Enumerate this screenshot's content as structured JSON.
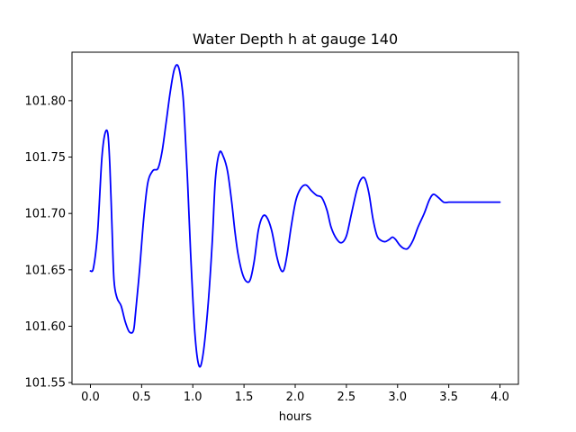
{
  "chart_data": {
    "type": "line",
    "title": "Water Depth h at gauge 140",
    "xlabel": "hours",
    "ylabel": "",
    "xlim": [
      -0.18,
      4.18
    ],
    "ylim": [
      101.5485,
      101.843
    ],
    "xticks": [
      0.0,
      0.5,
      1.0,
      1.5,
      2.0,
      2.5,
      3.0,
      3.5,
      4.0
    ],
    "xtick_labels": [
      "0.0",
      "0.5",
      "1.0",
      "1.5",
      "2.0",
      "2.5",
      "3.0",
      "3.5",
      "4.0"
    ],
    "yticks": [
      101.55,
      101.6,
      101.65,
      101.7,
      101.75,
      101.8
    ],
    "ytick_labels": [
      "101.55",
      "101.60",
      "101.65",
      "101.70",
      "101.75",
      "101.80"
    ],
    "grid": false,
    "series": [
      {
        "color": "#0000ff",
        "x": [
          0.0,
          0.03,
          0.07,
          0.11,
          0.14,
          0.17,
          0.19,
          0.21,
          0.23,
          0.26,
          0.3,
          0.34,
          0.38,
          0.42,
          0.44,
          0.48,
          0.52,
          0.56,
          0.61,
          0.66,
          0.7,
          0.74,
          0.78,
          0.82,
          0.86,
          0.9,
          0.92,
          0.95,
          0.98,
          1.02,
          1.06,
          1.1,
          1.15,
          1.19,
          1.22,
          1.26,
          1.3,
          1.34,
          1.38,
          1.41,
          1.44,
          1.48,
          1.52,
          1.56,
          1.6,
          1.64,
          1.68,
          1.72,
          1.77,
          1.82,
          1.86,
          1.89,
          1.92,
          1.96,
          2.0,
          2.03,
          2.07,
          2.11,
          2.16,
          2.21,
          2.26,
          2.31,
          2.35,
          2.4,
          2.45,
          2.5,
          2.55,
          2.6,
          2.64,
          2.68,
          2.72,
          2.76,
          2.8,
          2.84,
          2.88,
          2.92,
          2.95,
          2.98,
          3.02,
          3.06,
          3.1,
          3.15,
          3.2,
          3.26,
          3.31,
          3.35,
          3.4,
          3.45,
          3.5,
          3.55,
          3.6,
          3.66,
          3.72,
          3.78,
          3.83,
          3.88,
          3.92,
          3.97,
          4.0
        ],
        "y": [
          101.649,
          101.652,
          101.683,
          101.747,
          101.77,
          101.771,
          101.742,
          101.69,
          101.641,
          101.625,
          101.618,
          101.604,
          101.595,
          101.596,
          101.611,
          101.65,
          101.695,
          101.727,
          101.738,
          101.74,
          101.755,
          101.781,
          101.808,
          101.828,
          101.83,
          101.808,
          101.781,
          101.726,
          101.662,
          101.594,
          101.565,
          101.575,
          101.62,
          101.675,
          101.73,
          101.754,
          101.75,
          101.737,
          101.71,
          101.685,
          101.665,
          101.648,
          101.64,
          101.641,
          101.658,
          101.685,
          101.697,
          101.697,
          101.685,
          101.662,
          101.65,
          101.65,
          101.663,
          101.688,
          101.709,
          101.718,
          101.724,
          101.725,
          101.72,
          101.716,
          101.714,
          101.703,
          101.688,
          101.678,
          101.674,
          101.68,
          101.7,
          101.72,
          101.73,
          101.731,
          101.718,
          101.695,
          101.68,
          101.676,
          101.675,
          101.677,
          101.679,
          101.677,
          101.672,
          101.669,
          101.669,
          101.676,
          101.688,
          101.7,
          101.712,
          101.717,
          101.714,
          101.71,
          101.71,
          101.71,
          101.71,
          101.71,
          101.71,
          101.71,
          101.71,
          101.71,
          101.71,
          101.71,
          101.71
        ]
      }
    ]
  }
}
